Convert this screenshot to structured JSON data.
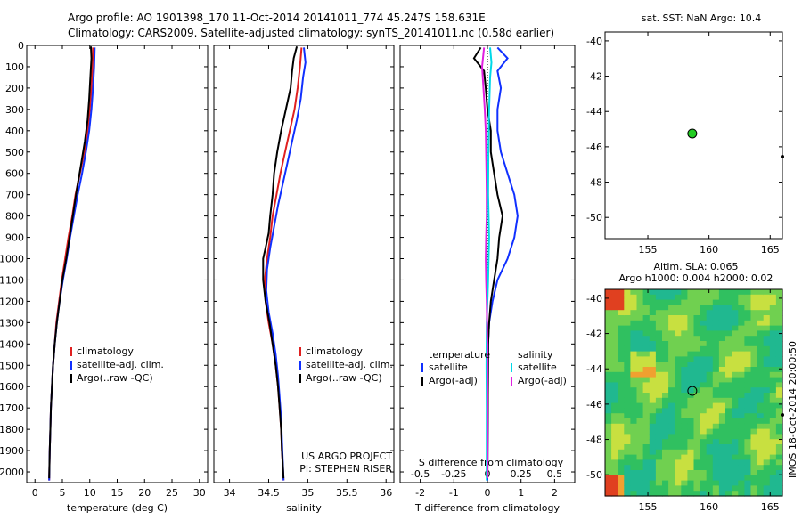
{
  "title": {
    "line1": "Argo profile: AO 1901398_170 11-Oct-2014 20141011_774 45.247S 158.631E",
    "line2": "Climatology: CARS2009. Satellite-adjusted climatology: synTS_20141011.nc (0.58d earlier)"
  },
  "colors": {
    "clim": "#e02020",
    "sat": "#1030ff",
    "argo": "#000000",
    "sal_sat": "#00d8e8",
    "sal_argo": "#e020e0"
  },
  "chart_data": [
    {
      "type": "line",
      "id": "temperature",
      "xlabel": "temperature (deg C)",
      "xlim": [
        -1.5,
        31.5
      ],
      "xticks": [
        0,
        5,
        10,
        15,
        20,
        25,
        30
      ],
      "xtick_labels": [
        "0",
        "5",
        "10",
        "15",
        "20",
        "25",
        "30"
      ],
      "ylim": [
        0,
        2050
      ],
      "yticks": [
        0,
        100,
        200,
        300,
        400,
        500,
        600,
        700,
        800,
        900,
        1000,
        1100,
        1200,
        1300,
        1400,
        1500,
        1600,
        1700,
        1800,
        1900,
        2000
      ],
      "ytick_labels": [
        "0",
        "100",
        "200",
        "300",
        "400",
        "500",
        "600",
        "700",
        "800",
        "900",
        "1000",
        "1100",
        "1200",
        "1300",
        "1400",
        "1500",
        "1600",
        "1700",
        "1800",
        "1900",
        "2000"
      ],
      "legend": [
        "climatology",
        "satellite-adj. clim.",
        "Argo(..raw -QC)"
      ],
      "series": [
        {
          "name": "climatology",
          "color": "clim",
          "points": [
            [
              10.6,
              10
            ],
            [
              10.5,
              100
            ],
            [
              10.3,
              200
            ],
            [
              10.0,
              300
            ],
            [
              9.6,
              400
            ],
            [
              9.0,
              500
            ],
            [
              8.2,
              600
            ],
            [
              7.4,
              700
            ],
            [
              6.8,
              800
            ],
            [
              6.1,
              900
            ],
            [
              5.5,
              1000
            ],
            [
              4.9,
              1100
            ],
            [
              4.4,
              1200
            ],
            [
              3.9,
              1300
            ],
            [
              3.6,
              1400
            ],
            [
              3.3,
              1500
            ],
            [
              3.1,
              1600
            ],
            [
              2.9,
              1700
            ],
            [
              2.8,
              1800
            ],
            [
              2.7,
              1900
            ],
            [
              2.6,
              2040
            ]
          ]
        },
        {
          "name": "satellite-adj. clim.",
          "color": "sat",
          "points": [
            [
              10.9,
              10
            ],
            [
              10.8,
              100
            ],
            [
              10.6,
              200
            ],
            [
              10.3,
              300
            ],
            [
              9.9,
              400
            ],
            [
              9.3,
              500
            ],
            [
              8.6,
              600
            ],
            [
              7.8,
              700
            ],
            [
              7.1,
              800
            ],
            [
              6.4,
              900
            ],
            [
              5.8,
              1000
            ],
            [
              5.1,
              1100
            ],
            [
              4.5,
              1200
            ],
            [
              4.0,
              1300
            ],
            [
              3.6,
              1400
            ],
            [
              3.3,
              1500
            ],
            [
              3.1,
              1600
            ],
            [
              2.9,
              1700
            ],
            [
              2.8,
              1800
            ],
            [
              2.7,
              1900
            ],
            [
              2.6,
              2040
            ]
          ]
        },
        {
          "name": "Argo(..raw -QC)",
          "color": "argo",
          "points": [
            [
              10.2,
              5
            ],
            [
              10.3,
              60
            ],
            [
              10.1,
              150
            ],
            [
              9.9,
              250
            ],
            [
              9.6,
              350
            ],
            [
              9.1,
              450
            ],
            [
              8.4,
              560
            ],
            [
              7.6,
              680
            ],
            [
              6.9,
              800
            ],
            [
              6.3,
              900
            ],
            [
              5.7,
              1000
            ],
            [
              5.0,
              1100
            ],
            [
              4.5,
              1200
            ],
            [
              4.0,
              1300
            ],
            [
              3.6,
              1400
            ],
            [
              3.3,
              1500
            ],
            [
              3.1,
              1600
            ],
            [
              2.9,
              1700
            ],
            [
              2.8,
              1800
            ],
            [
              2.7,
              1900
            ],
            [
              2.6,
              2030
            ]
          ]
        }
      ]
    },
    {
      "type": "line",
      "id": "salinity",
      "xlabel": "salinity",
      "xlim": [
        33.8,
        36.1
      ],
      "xticks": [
        34,
        34.5,
        35,
        35.5,
        36
      ],
      "xtick_labels": [
        "34",
        "34.5",
        "35",
        "35.5",
        "36"
      ],
      "ylim": [
        0,
        2050
      ],
      "legend": [
        "climatology",
        "satellite-adj. clim.",
        "Argo(..raw -QC)"
      ],
      "annotation": [
        "US ARGO PROJECT",
        "PI: STEPHEN RISER"
      ],
      "series": [
        {
          "name": "climatology",
          "color": "clim",
          "points": [
            [
              34.92,
              10
            ],
            [
              34.9,
              100
            ],
            [
              34.87,
              200
            ],
            [
              34.83,
              300
            ],
            [
              34.77,
              400
            ],
            [
              34.71,
              500
            ],
            [
              34.65,
              600
            ],
            [
              34.6,
              700
            ],
            [
              34.55,
              800
            ],
            [
              34.52,
              900
            ],
            [
              34.48,
              1000
            ],
            [
              34.45,
              1100
            ],
            [
              34.46,
              1200
            ],
            [
              34.5,
              1300
            ],
            [
              34.55,
              1400
            ],
            [
              34.59,
              1500
            ],
            [
              34.62,
              1600
            ],
            [
              34.64,
              1700
            ],
            [
              34.66,
              1800
            ],
            [
              34.67,
              1900
            ],
            [
              34.69,
              2040
            ]
          ]
        },
        {
          "name": "satellite-adj. clim.",
          "color": "sat",
          "points": [
            [
              34.95,
              10
            ],
            [
              34.97,
              80
            ],
            [
              34.94,
              150
            ],
            [
              34.91,
              250
            ],
            [
              34.86,
              350
            ],
            [
              34.8,
              450
            ],
            [
              34.74,
              550
            ],
            [
              34.68,
              650
            ],
            [
              34.62,
              750
            ],
            [
              34.57,
              850
            ],
            [
              34.52,
              950
            ],
            [
              34.48,
              1050
            ],
            [
              34.47,
              1150
            ],
            [
              34.5,
              1250
            ],
            [
              34.55,
              1350
            ],
            [
              34.59,
              1450
            ],
            [
              34.62,
              1550
            ],
            [
              34.64,
              1650
            ],
            [
              34.66,
              1750
            ],
            [
              34.67,
              1850
            ],
            [
              34.69,
              2040
            ]
          ]
        },
        {
          "name": "Argo(..raw -QC)",
          "color": "argo",
          "points": [
            [
              34.86,
              5
            ],
            [
              34.82,
              60
            ],
            [
              34.8,
              120
            ],
            [
              34.78,
              200
            ],
            [
              34.72,
              300
            ],
            [
              34.66,
              400
            ],
            [
              34.61,
              500
            ],
            [
              34.57,
              600
            ],
            [
              34.55,
              700
            ],
            [
              34.52,
              800
            ],
            [
              34.5,
              880
            ],
            [
              34.46,
              950
            ],
            [
              34.43,
              1000
            ],
            [
              34.43,
              1100
            ],
            [
              34.46,
              1200
            ],
            [
              34.51,
              1300
            ],
            [
              34.55,
              1400
            ],
            [
              34.59,
              1500
            ],
            [
              34.62,
              1600
            ],
            [
              34.64,
              1700
            ],
            [
              34.66,
              1800
            ],
            [
              34.67,
              1900
            ],
            [
              34.69,
              2030
            ]
          ]
        }
      ]
    },
    {
      "type": "line",
      "id": "difference",
      "xlabel": "T difference from climatology",
      "xlabel2": "S difference from climatology",
      "xlim": [
        -2.6,
        2.6
      ],
      "xticks": [
        -2,
        -1,
        0,
        1,
        2
      ],
      "xtick_labels": [
        "-2",
        "-1",
        "0",
        "1",
        "2"
      ],
      "s_ticks": [
        -0.5,
        -0.25,
        0,
        0.25,
        0.5
      ],
      "s_tick_labels": [
        "-0.5",
        "-0.25",
        "0",
        "0.25",
        "0.5"
      ],
      "ylim": [
        0,
        2050
      ],
      "legend_titles": [
        "temperature",
        "salinity"
      ],
      "legend": [
        "satellite",
        "Argo(-adj)",
        "satellite",
        "Argo(-adj)"
      ],
      "series": [
        {
          "name": "T satellite",
          "color": "sat",
          "points": [
            [
              0.3,
              10
            ],
            [
              0.6,
              60
            ],
            [
              0.3,
              120
            ],
            [
              0.4,
              200
            ],
            [
              0.3,
              300
            ],
            [
              0.3,
              400
            ],
            [
              0.4,
              500
            ],
            [
              0.6,
              600
            ],
            [
              0.8,
              700
            ],
            [
              0.9,
              800
            ],
            [
              0.8,
              900
            ],
            [
              0.6,
              1000
            ],
            [
              0.3,
              1100
            ],
            [
              0.15,
              1200
            ],
            [
              0.05,
              1300
            ],
            [
              0.02,
              1400
            ],
            [
              0,
              2040
            ]
          ]
        },
        {
          "name": "T Argo(-adj)",
          "color": "argo",
          "points": [
            [
              -0.2,
              10
            ],
            [
              -0.4,
              60
            ],
            [
              -0.1,
              120
            ],
            [
              -0.05,
              200
            ],
            [
              0.0,
              300
            ],
            [
              0.1,
              400
            ],
            [
              0.1,
              500
            ],
            [
              0.2,
              600
            ],
            [
              0.3,
              700
            ],
            [
              0.45,
              800
            ],
            [
              0.35,
              900
            ],
            [
              0.3,
              1000
            ],
            [
              0.2,
              1100
            ],
            [
              0.1,
              1200
            ],
            [
              0.05,
              1300
            ],
            [
              0.02,
              1400
            ],
            [
              0,
              2030
            ]
          ]
        },
        {
          "name": "S satellite",
          "color": "sal_sat",
          "points": [
            [
              0.08,
              10
            ],
            [
              0.12,
              80
            ],
            [
              0.08,
              150
            ],
            [
              0.05,
              300
            ],
            [
              0.03,
              500
            ],
            [
              0.02,
              700
            ],
            [
              0.05,
              900
            ],
            [
              0.02,
              1100
            ],
            [
              -0.02,
              1300
            ],
            [
              -0.03,
              1500
            ],
            [
              -0.02,
              1700
            ],
            [
              -0.02,
              2040
            ]
          ]
        },
        {
          "name": "S Argo(-adj)",
          "color": "sal_argo",
          "points": [
            [
              -0.1,
              10
            ],
            [
              -0.16,
              100
            ],
            [
              -0.12,
              200
            ],
            [
              -0.08,
              300
            ],
            [
              -0.05,
              400
            ],
            [
              -0.04,
              500
            ],
            [
              -0.03,
              600
            ],
            [
              -0.02,
              700
            ],
            [
              -0.02,
              800
            ],
            [
              -0.04,
              900
            ],
            [
              -0.05,
              1000
            ],
            [
              -0.04,
              1100
            ],
            [
              -0.02,
              1200
            ],
            [
              0,
              1400
            ],
            [
              0,
              2030
            ]
          ]
        }
      ]
    },
    {
      "type": "scatter",
      "id": "sst_map",
      "title": "sat. SST: NaN Argo: 10.4",
      "xlim": [
        151.5,
        166
      ],
      "ylim": [
        -51.2,
        -39.5
      ],
      "xticks": [
        155,
        160,
        165
      ],
      "xtick_labels": [
        "155",
        "160",
        "165"
      ],
      "yticks": [
        -40,
        -42,
        -44,
        -46,
        -48,
        -50
      ],
      "ytick_labels": [
        "-40",
        "-42",
        "-44",
        "-46",
        "-48",
        "-50"
      ],
      "marker": {
        "lon": 158.631,
        "lat": -45.247,
        "color": "#22cc22"
      }
    },
    {
      "type": "heatmap",
      "id": "sla_map",
      "title_line1": "Altim. SLA: 0.065",
      "title_line2": "Argo h1000: 0.004 h2000: 0.02",
      "xlim": [
        151.5,
        166
      ],
      "ylim": [
        -51.2,
        -39.5
      ],
      "xticks": [
        155,
        160,
        165
      ],
      "xtick_labels": [
        "155",
        "160",
        "165"
      ],
      "yticks": [
        -40,
        -42,
        -44,
        -46,
        -48,
        -50
      ],
      "ytick_labels": [
        "-40",
        "-42",
        "-44",
        "-46",
        "-48",
        "-50"
      ],
      "marker": {
        "lon": 158.631,
        "lat": -45.247
      },
      "side_label": "IMOS 18-Oct-2014 20:00:50"
    }
  ]
}
